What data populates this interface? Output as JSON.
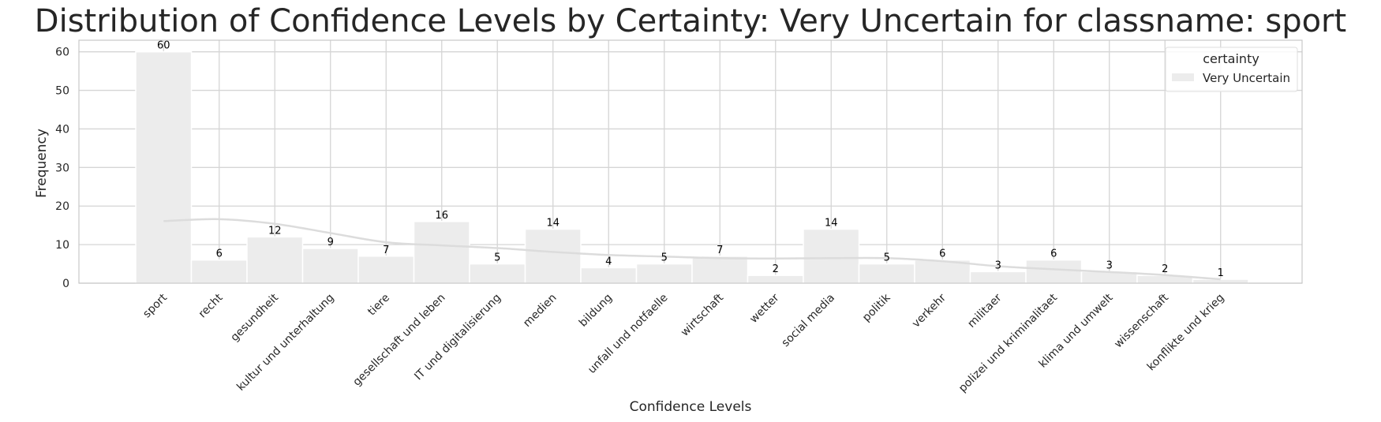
{
  "chart_data": {
    "type": "bar",
    "title": "Distribution of Confidence Levels by Certainty: Very Uncertain for classname: sport",
    "xlabel": "Confidence Levels",
    "ylabel": "Frequency",
    "categories": [
      "sport",
      "recht",
      "gesundheit",
      "kultur und unterhaltung",
      "tiere",
      "gesellschaft und leben",
      "IT und digitalisierung",
      "medien",
      "bildung",
      "unfall und notfaelle",
      "wirtschaft",
      "wetter",
      "social media",
      "politik",
      "verkehr",
      "militaer",
      "polizei und kriminalitaet",
      "klima und umwelt",
      "wissenschaft",
      "konflikte und krieg"
    ],
    "series": [
      {
        "name": "Very Uncertain",
        "values": [
          60,
          6,
          12,
          9,
          7,
          16,
          5,
          14,
          4,
          5,
          7,
          2,
          14,
          5,
          6,
          3,
          6,
          3,
          2,
          1
        ]
      }
    ],
    "kde_values": [
      16.1,
      16.6,
      15.4,
      13.0,
      10.6,
      9.8,
      9.1,
      8.1,
      7.3,
      6.9,
      6.5,
      6.4,
      6.5,
      6.5,
      5.7,
      4.4,
      3.6,
      2.9,
      2.1,
      1.0
    ],
    "ylim": [
      0,
      63
    ],
    "yticks": [
      0,
      10,
      20,
      30,
      40,
      50,
      60
    ],
    "grid": true,
    "legend": {
      "title": "certainty",
      "entries": [
        "Very Uncertain"
      ],
      "position": "top-right"
    },
    "colors": {
      "bar": "#ececec",
      "kde": "#dcdcdc",
      "grid": "#d5d5d5",
      "axes": "#c8c8c8",
      "text": "#262626"
    }
  }
}
